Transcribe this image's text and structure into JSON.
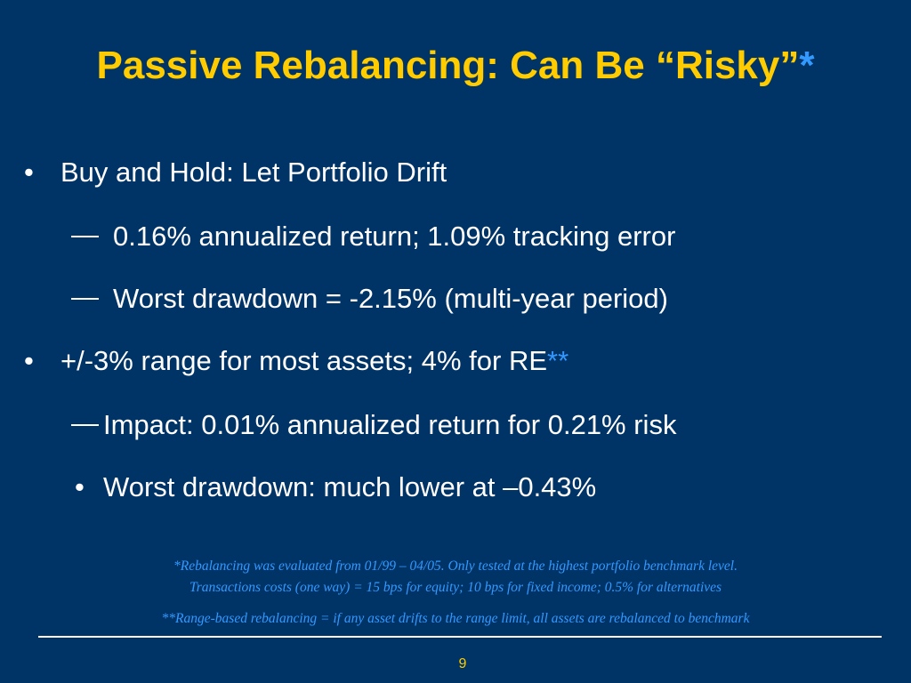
{
  "slide": {
    "title": "Passive Rebalancing: Can Be “Risky”",
    "title_star": "*",
    "bullets": [
      {
        "marker": "•",
        "text": "Buy and Hold: Let Portfolio Drift"
      },
      {
        "marker": "—",
        "text": "0.16% annualized return; 1.09% tracking error"
      },
      {
        "marker": "—",
        "text": "Worst drawdown = -2.15% (multi-year period)"
      },
      {
        "marker": "•",
        "text": "+/-3% range for most assets; 4% for RE",
        "star": "**"
      },
      {
        "marker": "—",
        "text": "Impact: 0.01% annualized return for 0.21% risk"
      },
      {
        "marker": "•",
        "text": "Worst drawdown: much lower at –0.43%"
      }
    ],
    "footnotes": [
      "*Rebalancing was evaluated from 01/99 – 04/05. Only tested at the highest portfolio benchmark level.",
      "Transactions costs  (one way) = 15 bps for equity; 10 bps for fixed income; 0.5% for alternatives",
      "**Range-based rebalancing = if any asset drifts to the range limit, all assets are rebalanced to benchmark"
    ],
    "page_number": "9",
    "colors": {
      "background": "#003366",
      "title": "#FFCC00",
      "body_text": "#FFFFFF",
      "accent": "#3399FF"
    }
  }
}
